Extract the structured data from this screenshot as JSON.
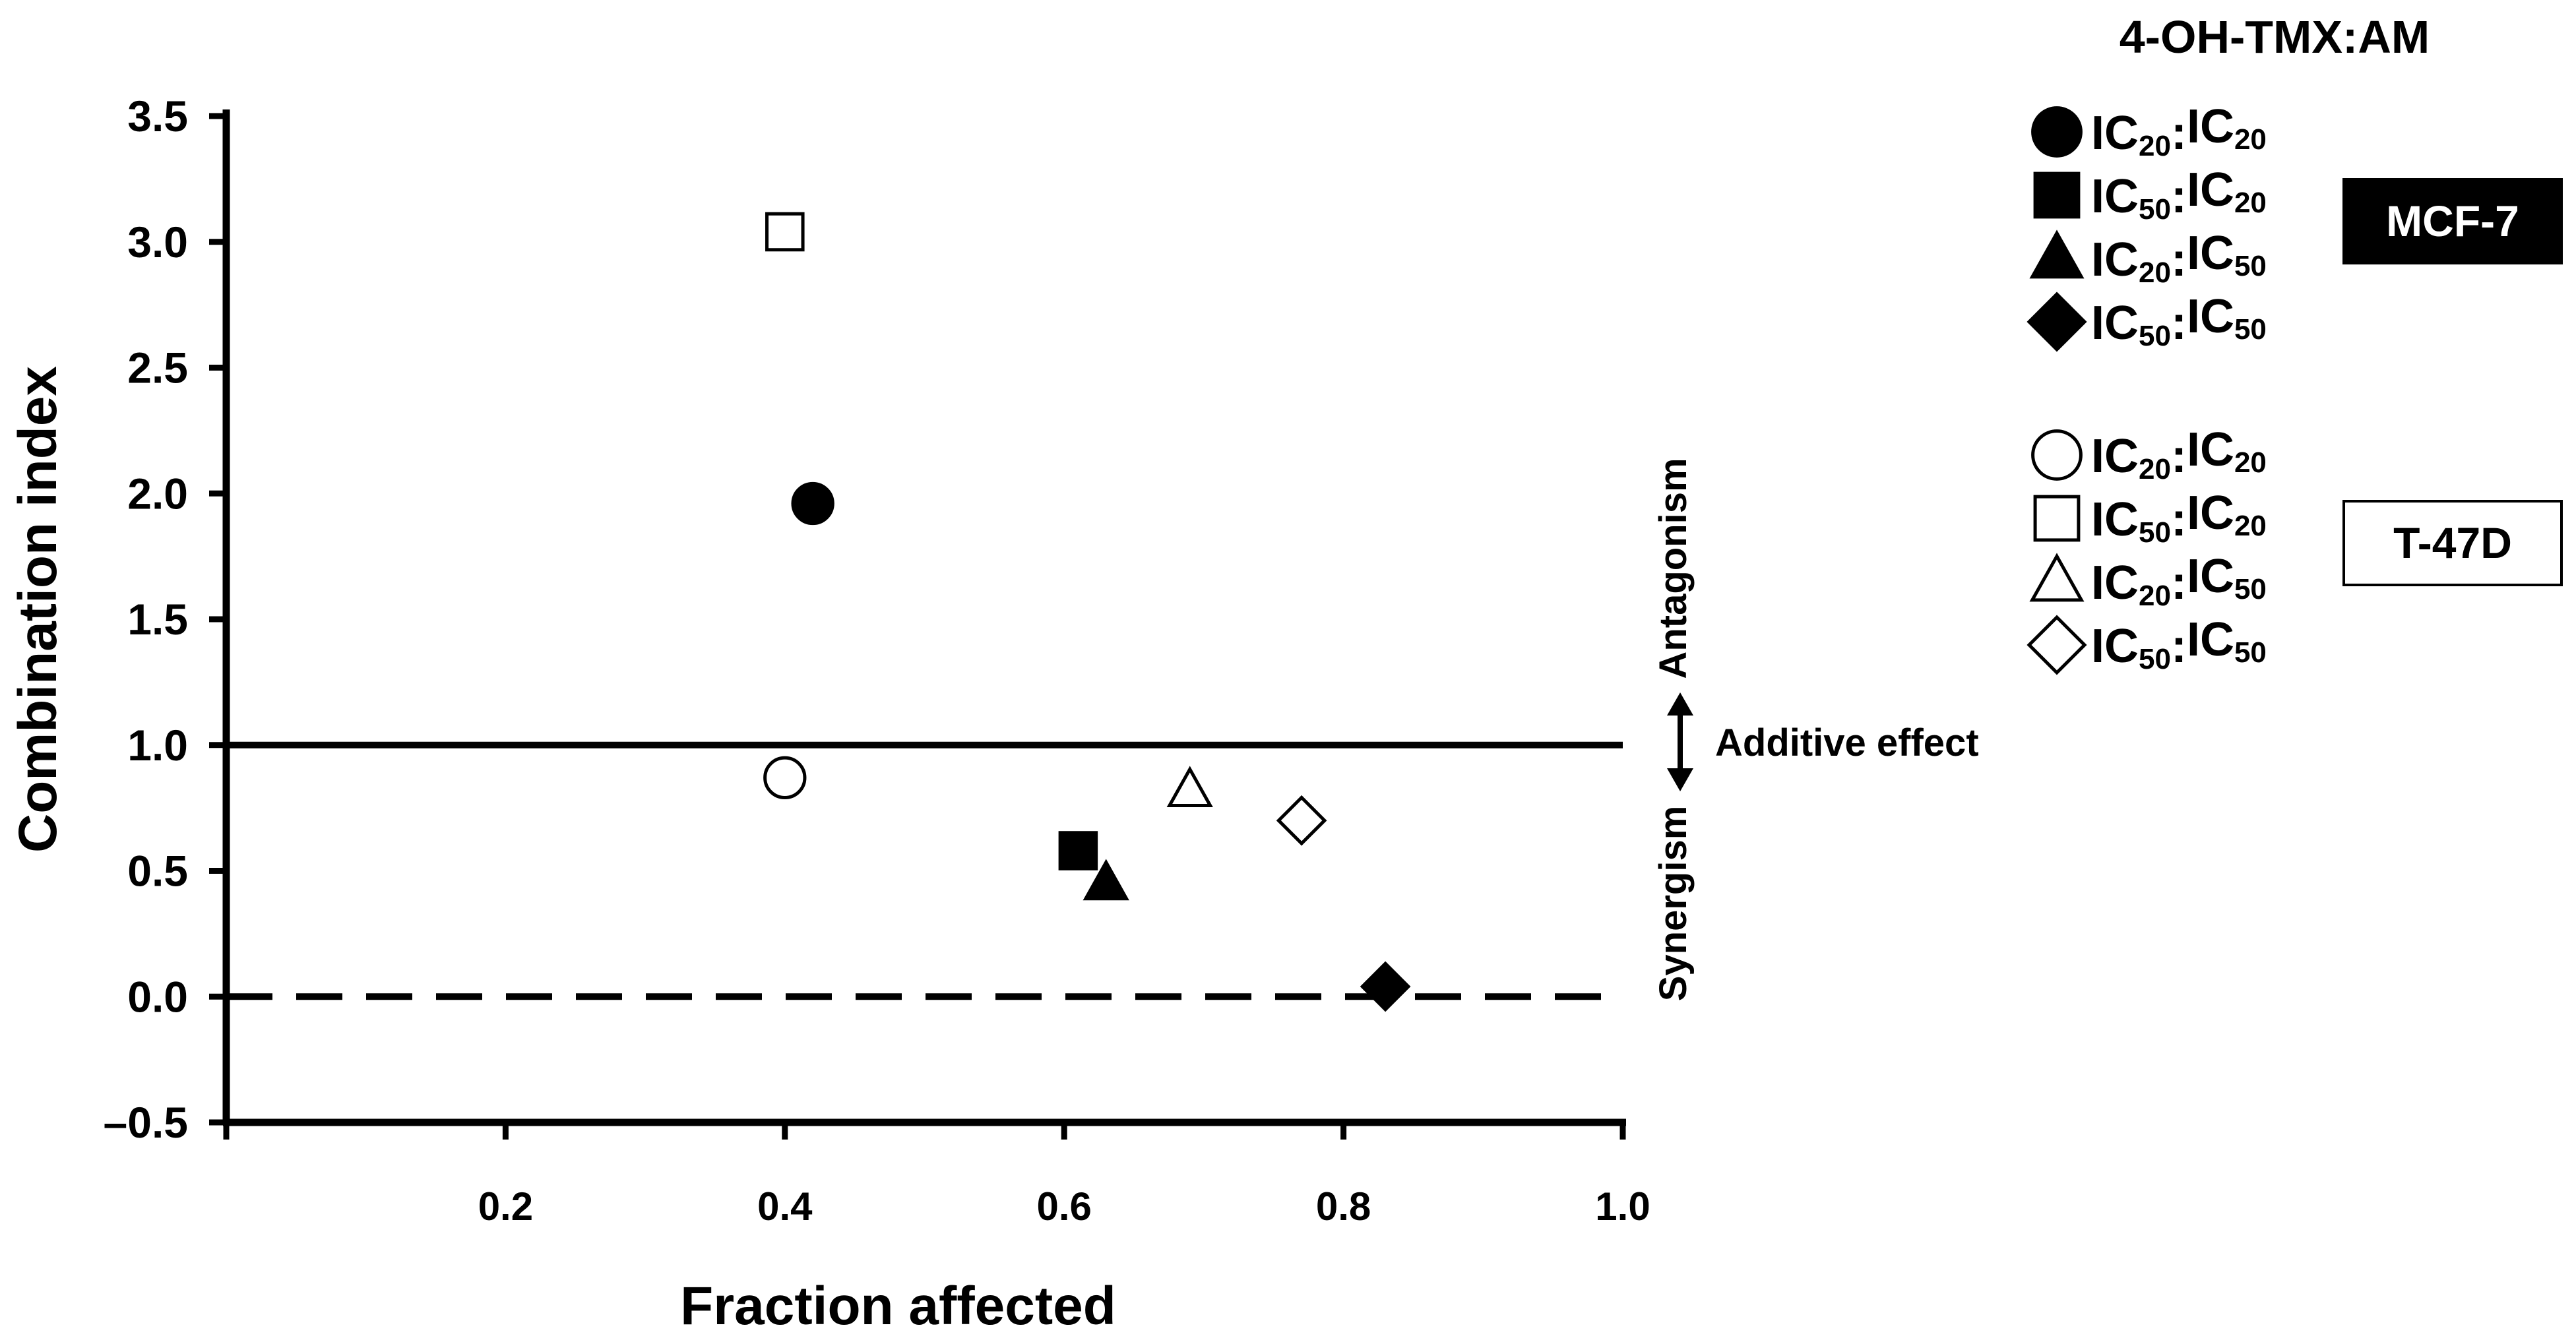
{
  "chart_data": {
    "type": "scatter",
    "title": "",
    "xlabel": "Fraction affected",
    "ylabel": "Combination index",
    "xlim": [
      0,
      1.0
    ],
    "ylim": [
      -0.5,
      3.5
    ],
    "x_ticks": [
      {
        "value": 0.2,
        "label": "0.2"
      },
      {
        "value": 0.4,
        "label": "0.4"
      },
      {
        "value": 0.6,
        "label": "0.6"
      },
      {
        "value": 0.8,
        "label": "0.8"
      },
      {
        "value": 1.0,
        "label": "1.0"
      }
    ],
    "y_ticks": [
      {
        "value": 3.5,
        "label": "3.5"
      },
      {
        "value": 3.0,
        "label": "3.0"
      },
      {
        "value": 2.5,
        "label": "2.5"
      },
      {
        "value": 2.0,
        "label": "2.0"
      },
      {
        "value": 1.5,
        "label": "1.5"
      },
      {
        "value": 1.0,
        "label": "1.0"
      },
      {
        "value": 0.5,
        "label": "0.5"
      },
      {
        "value": 0.0,
        "label": "0.0"
      },
      {
        "value": -0.5,
        "label": "–0.5"
      }
    ],
    "reference_lines": [
      {
        "name": "additive",
        "y": 1.0,
        "style": "solid"
      },
      {
        "name": "zero",
        "y": 0.0,
        "style": "dashed"
      }
    ],
    "annotations": {
      "antagonism": "Antagonism",
      "synergism": "Synergism",
      "additive": "Additive effect"
    },
    "legend": {
      "title": "4-OH-TMX:AM",
      "position": "right",
      "groups": [
        {
          "cell_line": "MCF-7",
          "fill": "#000000",
          "entries": [
            {
              "marker": "circle",
              "pre1": "IC",
              "sub1": "20",
              "sep": ":",
              "pre2": "IC",
              "sub2": "20"
            },
            {
              "marker": "square",
              "pre1": "IC",
              "sub1": "50",
              "sep": ":",
              "pre2": "IC",
              "sub2": "20"
            },
            {
              "marker": "triangle",
              "pre1": "IC",
              "sub1": "20",
              "sep": ":",
              "pre2": "IC",
              "sub2": "50"
            },
            {
              "marker": "diamond",
              "pre1": "IC",
              "sub1": "50",
              "sep": ":",
              "pre2": "IC",
              "sub2": "50"
            }
          ]
        },
        {
          "cell_line": "T-47D",
          "fill": "#ffffff",
          "entries": [
            {
              "marker": "circle",
              "pre1": "IC",
              "sub1": "20",
              "sep": ":",
              "pre2": "IC",
              "sub2": "20"
            },
            {
              "marker": "square",
              "pre1": "IC",
              "sub1": "50",
              "sep": ":",
              "pre2": "IC",
              "sub2": "20"
            },
            {
              "marker": "triangle",
              "pre1": "IC",
              "sub1": "20",
              "sep": ":",
              "pre2": "IC",
              "sub2": "50"
            },
            {
              "marker": "diamond",
              "pre1": "IC",
              "sub1": "50",
              "sep": ":",
              "pre2": "IC",
              "sub2": "50"
            }
          ]
        }
      ]
    },
    "series": [
      {
        "name": "MCF-7 IC20:IC20",
        "cell_line": "MCF-7",
        "marker": "circle",
        "filled": true,
        "x": 0.42,
        "y": 1.96
      },
      {
        "name": "MCF-7 IC50:IC20",
        "cell_line": "MCF-7",
        "marker": "square",
        "filled": true,
        "x": 0.61,
        "y": 0.58
      },
      {
        "name": "MCF-7 IC20:IC50",
        "cell_line": "MCF-7",
        "marker": "triangle",
        "filled": true,
        "x": 0.63,
        "y": 0.45
      },
      {
        "name": "MCF-7 IC50:IC50",
        "cell_line": "MCF-7",
        "marker": "diamond",
        "filled": true,
        "x": 0.83,
        "y": 0.04
      },
      {
        "name": "T-47D IC20:IC20",
        "cell_line": "T-47D",
        "marker": "circle",
        "filled": false,
        "x": 0.4,
        "y": 0.87
      },
      {
        "name": "T-47D IC50:IC20",
        "cell_line": "T-47D",
        "marker": "square",
        "filled": false,
        "x": 0.4,
        "y": 3.04
      },
      {
        "name": "T-47D IC20:IC50",
        "cell_line": "T-47D",
        "marker": "triangle",
        "filled": false,
        "x": 0.69,
        "y": 0.82
      },
      {
        "name": "T-47D IC50:IC50",
        "cell_line": "T-47D",
        "marker": "diamond",
        "filled": false,
        "x": 0.77,
        "y": 0.7
      }
    ]
  }
}
